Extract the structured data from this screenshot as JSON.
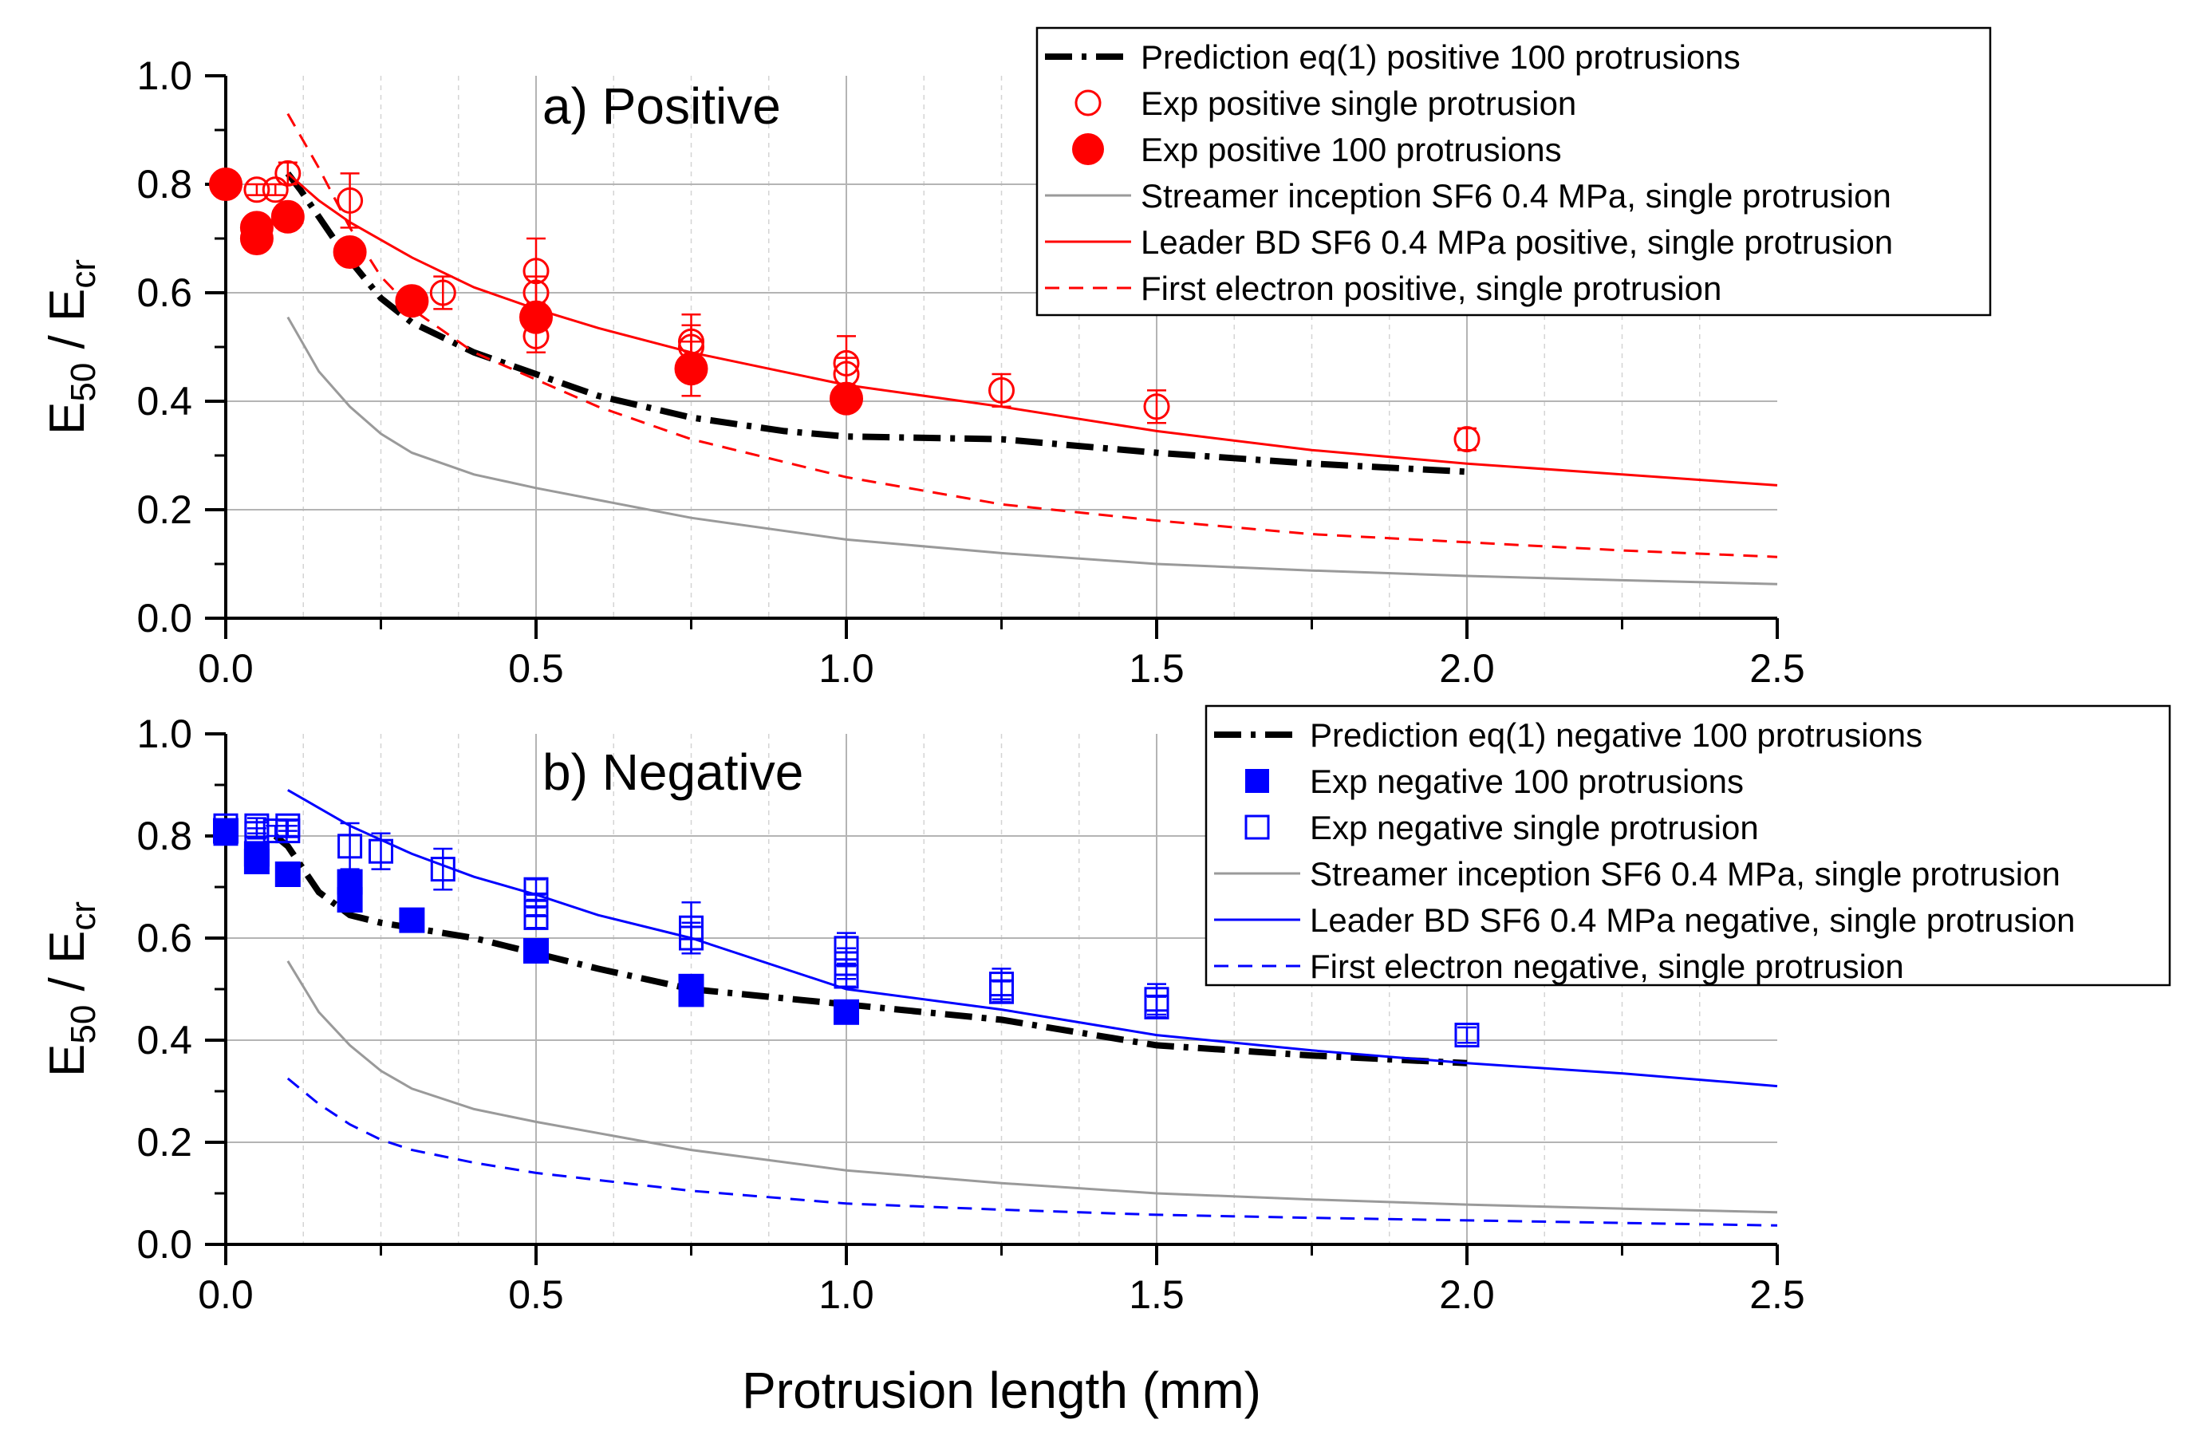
{
  "chart_data": [
    {
      "type": "scatter",
      "title": "a) Positive",
      "xlabel": "",
      "ylabel_main": "E",
      "ylabel_sub1": "50",
      "ylabel_mid": " / E",
      "ylabel_sub2": "cr",
      "xlim": [
        0,
        2.5
      ],
      "ylim": [
        0,
        1.0
      ],
      "xticks": [
        "0.0",
        "0.5",
        "1.0",
        "1.5",
        "2.0",
        "2.5"
      ],
      "yticks": [
        "0.0",
        "0.2",
        "0.4",
        "0.6",
        "0.8",
        "1.0"
      ],
      "grid": true,
      "legend_position": "top-right",
      "series": [
        {
          "name": "Prediction eq(1) positive  100 protrusions",
          "kind": "dashdot",
          "color": "#000000",
          "x": [
            0.1,
            0.12,
            0.15,
            0.18,
            0.2,
            0.25,
            0.3,
            0.4,
            0.5,
            0.6,
            0.75,
            0.9,
            1.0,
            1.25,
            1.5,
            1.75,
            2.0
          ],
          "y": [
            0.82,
            0.79,
            0.74,
            0.69,
            0.66,
            0.59,
            0.545,
            0.49,
            0.45,
            0.41,
            0.37,
            0.345,
            0.335,
            0.33,
            0.305,
            0.285,
            0.27
          ]
        },
        {
          "name": "Exp positive single protrusion",
          "kind": "open-circle",
          "color": "#ff0000",
          "x": [
            0.05,
            0.08,
            0.1,
            0.2,
            0.35,
            0.5,
            0.5,
            0.5,
            0.75,
            0.75,
            1.0,
            1.0,
            1.25,
            1.5,
            2.0
          ],
          "y": [
            0.79,
            0.79,
            0.82,
            0.77,
            0.6,
            0.64,
            0.6,
            0.52,
            0.51,
            0.5,
            0.47,
            0.45,
            0.42,
            0.39,
            0.33
          ],
          "err": [
            0.01,
            0.01,
            0.02,
            0.05,
            0.03,
            0.06,
            0.03,
            0.03,
            0.05,
            0.04,
            0.05,
            0.03,
            0.03,
            0.03,
            0.02
          ]
        },
        {
          "name": "Exp positive 100 protrusions",
          "kind": "filled-circle",
          "color": "#ff0000",
          "x": [
            0.0,
            0.05,
            0.05,
            0.1,
            0.2,
            0.3,
            0.5,
            0.75,
            1.0
          ],
          "y": [
            0.8,
            0.72,
            0.7,
            0.74,
            0.675,
            0.585,
            0.555,
            0.46,
            0.405
          ],
          "err": [
            0,
            0,
            0,
            0,
            0,
            0,
            0,
            0.05,
            0
          ]
        },
        {
          "name": "Streamer inception SF6 0.4 MPa, single protrusion",
          "kind": "solid",
          "color": "#9a9a9a",
          "x": [
            0.1,
            0.15,
            0.2,
            0.25,
            0.3,
            0.4,
            0.5,
            0.75,
            1.0,
            1.25,
            1.5,
            1.75,
            2.0,
            2.25,
            2.5
          ],
          "y": [
            0.555,
            0.455,
            0.39,
            0.34,
            0.305,
            0.265,
            0.24,
            0.185,
            0.145,
            0.12,
            0.1,
            0.088,
            0.078,
            0.07,
            0.063
          ]
        },
        {
          "name": "Leader BD SF6 0.4 MPa positive, single protrusion",
          "kind": "solid",
          "color": "#ff0000",
          "x": [
            0.1,
            0.15,
            0.2,
            0.3,
            0.4,
            0.5,
            0.6,
            0.75,
            1.0,
            1.25,
            1.5,
            1.75,
            2.0,
            2.25,
            2.5
          ],
          "y": [
            0.82,
            0.77,
            0.73,
            0.665,
            0.61,
            0.57,
            0.535,
            0.49,
            0.43,
            0.39,
            0.345,
            0.31,
            0.285,
            0.265,
            0.245
          ]
        },
        {
          "name": "First electron positive, single protrusion",
          "kind": "dashed",
          "color": "#ff0000",
          "x": [
            0.1,
            0.15,
            0.2,
            0.25,
            0.3,
            0.4,
            0.5,
            0.6,
            0.75,
            1.0,
            1.25,
            1.5,
            1.75,
            2.0,
            2.25,
            2.5
          ],
          "y": [
            0.93,
            0.83,
            0.72,
            0.63,
            0.57,
            0.49,
            0.44,
            0.39,
            0.33,
            0.26,
            0.21,
            0.18,
            0.155,
            0.14,
            0.125,
            0.113
          ]
        }
      ]
    },
    {
      "type": "scatter",
      "title": "b) Negative",
      "xlabel": "Protrusion length (mm)",
      "ylabel_main": "E",
      "ylabel_sub1": "50",
      "ylabel_mid": " / E",
      "ylabel_sub2": "cr",
      "xlim": [
        0,
        2.5
      ],
      "ylim": [
        0,
        1.0
      ],
      "xticks": [
        "0.0",
        "0.5",
        "1.0",
        "1.5",
        "2.0",
        "2.5"
      ],
      "yticks": [
        "0.0",
        "0.2",
        "0.4",
        "0.6",
        "0.8",
        "1.0"
      ],
      "grid": true,
      "legend_position": "top-right",
      "series": [
        {
          "name": "Prediction eq(1) negative 100 protrusions",
          "kind": "dashdot",
          "color": "#000000",
          "x": [
            0.08,
            0.1,
            0.15,
            0.2,
            0.25,
            0.3,
            0.4,
            0.5,
            0.6,
            0.75,
            1.0,
            1.25,
            1.5,
            1.75,
            2.0
          ],
          "y": [
            0.8,
            0.78,
            0.69,
            0.645,
            0.63,
            0.62,
            0.6,
            0.57,
            0.54,
            0.5,
            0.47,
            0.44,
            0.39,
            0.37,
            0.355
          ]
        },
        {
          "name": "Exp negative 100 protrusions",
          "kind": "filled-square",
          "color": "#0000ff",
          "x": [
            0.0,
            0.05,
            0.05,
            0.1,
            0.2,
            0.2,
            0.3,
            0.5,
            0.75,
            0.75,
            1.0
          ],
          "y": [
            0.81,
            0.765,
            0.75,
            0.725,
            0.71,
            0.675,
            0.635,
            0.575,
            0.505,
            0.49,
            0.455
          ],
          "err": [
            0,
            0,
            0,
            0,
            0,
            0,
            0,
            0,
            0,
            0,
            0
          ]
        },
        {
          "name": "Exp negative single protrusion",
          "kind": "open-square",
          "color": "#0000ff",
          "x": [
            0.0,
            0.0,
            0.05,
            0.05,
            0.08,
            0.1,
            0.1,
            0.2,
            0.25,
            0.35,
            0.5,
            0.5,
            0.5,
            0.75,
            0.75,
            1.0,
            1.0,
            1.0,
            1.25,
            1.25,
            1.5,
            1.5,
            2.0
          ],
          "y": [
            0.82,
            0.805,
            0.82,
            0.805,
            0.81,
            0.82,
            0.81,
            0.78,
            0.77,
            0.735,
            0.695,
            0.665,
            0.64,
            0.62,
            0.6,
            0.58,
            0.55,
            0.525,
            0.51,
            0.495,
            0.48,
            0.465,
            0.41
          ],
          "err": [
            0.01,
            0.01,
            0.015,
            0.01,
            0.01,
            0.01,
            0.01,
            0.045,
            0.035,
            0.04,
            0.02,
            0.02,
            0.02,
            0.05,
            0.03,
            0.03,
            0.03,
            0.02,
            0.03,
            0.02,
            0.03,
            0.02,
            0.015
          ]
        },
        {
          "name": "Streamer inception SF6 0.4 MPa, single protrusion",
          "kind": "solid",
          "color": "#9a9a9a",
          "x": [
            0.1,
            0.15,
            0.2,
            0.25,
            0.3,
            0.4,
            0.5,
            0.75,
            1.0,
            1.25,
            1.5,
            1.75,
            2.0,
            2.25,
            2.5
          ],
          "y": [
            0.555,
            0.455,
            0.39,
            0.34,
            0.305,
            0.265,
            0.24,
            0.185,
            0.145,
            0.12,
            0.1,
            0.088,
            0.078,
            0.07,
            0.063
          ]
        },
        {
          "name": "Leader BD SF6 0.4 MPa negative, single protrusion",
          "kind": "solid",
          "color": "#0000ff",
          "x": [
            0.1,
            0.15,
            0.2,
            0.3,
            0.4,
            0.5,
            0.6,
            0.75,
            1.0,
            1.25,
            1.5,
            1.75,
            2.0,
            2.25,
            2.5
          ],
          "y": [
            0.89,
            0.855,
            0.82,
            0.765,
            0.72,
            0.685,
            0.645,
            0.6,
            0.5,
            0.46,
            0.41,
            0.38,
            0.355,
            0.335,
            0.31
          ]
        },
        {
          "name": "First electron negative, single protrusion",
          "kind": "dashed",
          "color": "#0000ff",
          "x": [
            0.1,
            0.15,
            0.2,
            0.25,
            0.3,
            0.4,
            0.5,
            0.75,
            1.0,
            1.25,
            1.5,
            1.75,
            2.0,
            2.25,
            2.5
          ],
          "y": [
            0.325,
            0.275,
            0.235,
            0.205,
            0.185,
            0.16,
            0.14,
            0.105,
            0.08,
            0.068,
            0.058,
            0.052,
            0.047,
            0.042,
            0.037
          ]
        }
      ]
    }
  ]
}
